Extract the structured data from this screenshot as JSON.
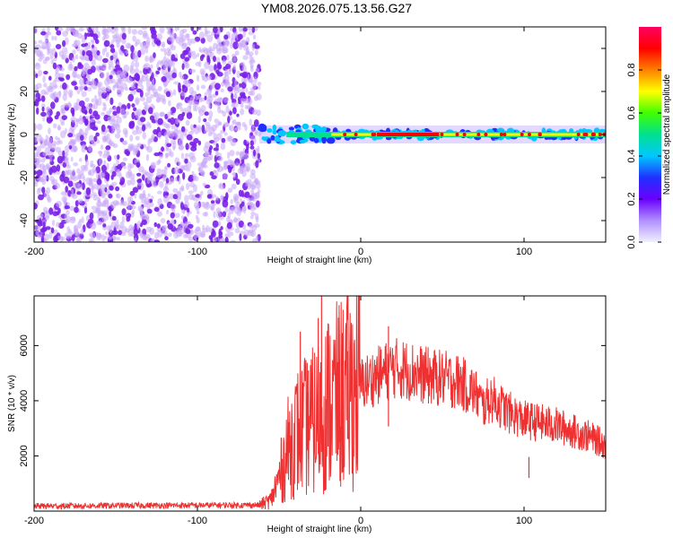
{
  "title": "YM08.2026.075.13.56.G27",
  "colors": {
    "snr_line": "#f03030",
    "scatter_purple": "#7a20e8",
    "scatter_light": "#c8a8f8",
    "colorbar_stops": [
      "#f0f0ff",
      "#b090ff",
      "#6a00ff",
      "#2030ff",
      "#00c8ff",
      "#00e090",
      "#40ff00",
      "#ffff00",
      "#ff8000",
      "#ff0000",
      "#ff0060"
    ]
  },
  "chart_data": [
    {
      "type": "heatmap",
      "xlabel": "Height of straight line (km)",
      "ylabel": "Frequency (Hz)",
      "xlim": [
        -200,
        150
      ],
      "ylim": [
        -50,
        50
      ],
      "xticks": [
        -200,
        -100,
        0,
        100
      ],
      "yticks": [
        -40,
        -20,
        0,
        20,
        40
      ],
      "noise_region_x": [
        -200,
        -62
      ],
      "signal_band": {
        "x_start": -62,
        "x_end": 150,
        "center_frequency": 0
      },
      "colorbar": {
        "label": "Normalized spectral amplitude",
        "range": [
          0.0,
          1.0
        ],
        "ticks": [
          "0.0",
          "0.2",
          "0.4",
          "0.6",
          "0.8"
        ]
      }
    },
    {
      "type": "line",
      "xlabel": "Height of straight line (km)",
      "ylabel": "SNR (10 * v/v)",
      "xlim": [
        -200,
        150
      ],
      "ylim": [
        0,
        7800
      ],
      "xticks": [
        -200,
        -100,
        0,
        100
      ],
      "yticks": [
        2000,
        4000,
        6000
      ],
      "series": [
        {
          "x": [
            -200,
            -150,
            -100,
            -62,
            -55,
            -50,
            -45,
            -40,
            -30,
            -25,
            -20,
            -10,
            0,
            10,
            20,
            30,
            40,
            50,
            60,
            70,
            75,
            80,
            90,
            100,
            110,
            120,
            130,
            140,
            150
          ],
          "values": [
            180,
            200,
            210,
            220,
            400,
            1200,
            2200,
            2800,
            3200,
            3500,
            3900,
            4300,
            4600,
            4900,
            5200,
            5100,
            4900,
            4800,
            4700,
            4300,
            3800,
            4100,
            3600,
            3300,
            3200,
            3100,
            2900,
            2700,
            2400
          ]
        }
      ],
      "spikes": [
        {
          "x": -37,
          "y": 6500
        },
        {
          "x": -32,
          "y": 5100
        },
        {
          "x": -26,
          "y": 7000
        },
        {
          "x": -24,
          "y": 7800
        },
        {
          "x": -20,
          "y": 6800
        },
        {
          "x": -13,
          "y": 5500
        },
        {
          "x": -8,
          "y": 5800
        },
        {
          "x": 17,
          "y": 6700
        },
        {
          "x": 103,
          "y": 1200
        }
      ]
    }
  ]
}
